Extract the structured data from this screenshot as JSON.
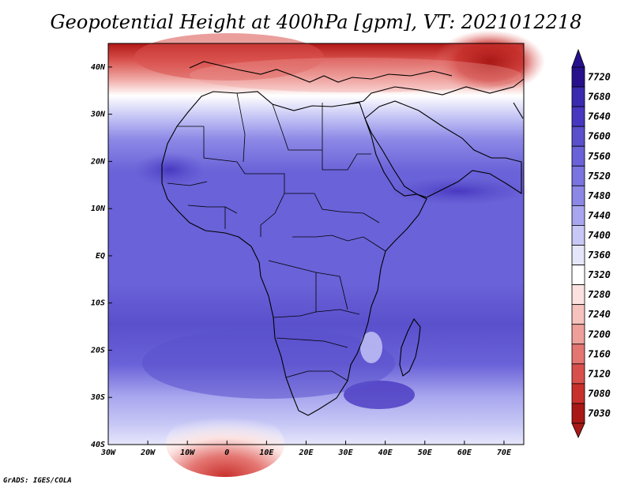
{
  "title": "Geopotential Height at 400hPa [gpm], VT: 2021012218",
  "footer": "GrADS: IGES/COLA",
  "map": {
    "lon_range": [
      -30,
      75
    ],
    "lat_range": [
      -40,
      45
    ],
    "lat_ticks": [
      "40N",
      "30N",
      "20N",
      "10N",
      "EQ",
      "10S",
      "20S",
      "30S",
      "40S"
    ],
    "lon_ticks": [
      "30W",
      "20W",
      "10W",
      "0",
      "10E",
      "20E",
      "30E",
      "40E",
      "50E",
      "60E",
      "70E"
    ]
  },
  "colorbar": {
    "levels": [
      "7720",
      "7680",
      "7640",
      "7600",
      "7560",
      "7520",
      "7480",
      "7440",
      "7400",
      "7360",
      "7320",
      "7280",
      "7240",
      "7200",
      "7160",
      "7120",
      "7080",
      "7030"
    ],
    "colors": [
      "#28108c",
      "#3a2ab0",
      "#4838c0",
      "#5a50cc",
      "#6a62d8",
      "#7a74e0",
      "#8c88e6",
      "#a8a6ee",
      "#c8c8f6",
      "#e6e6fb",
      "#ffffff",
      "#fbe2e0",
      "#f6c2be",
      "#ee9f9a",
      "#e47672",
      "#d8504c",
      "#c8302c",
      "#a81816"
    ]
  }
}
